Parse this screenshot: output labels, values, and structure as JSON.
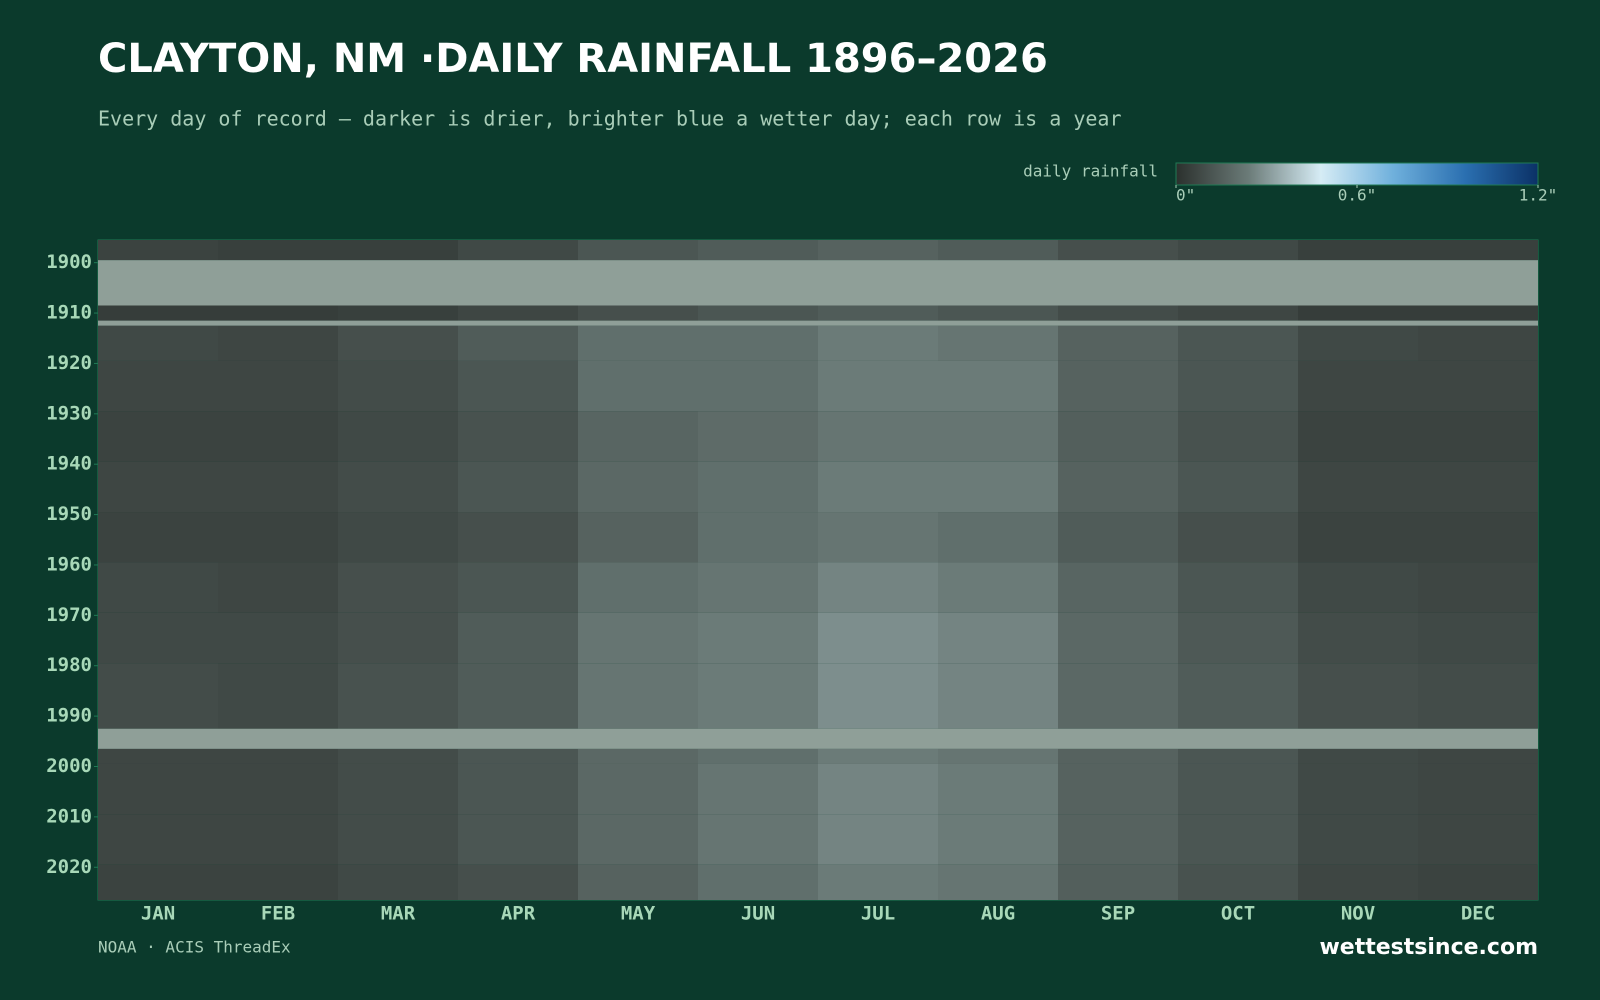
{
  "chart_data": {
    "type": "heatmap",
    "title": "CLAYTON, NM ·DAILY RAINFALL 1896–2026",
    "subtitle": "Every day of record — darker is drier, brighter blue a wetter day; each row is a year",
    "legend_title": "daily rainfall",
    "source": "NOAA · ACIS ThreadEx",
    "brand": "wettestsince.com",
    "categories": [
      "JAN",
      "FEB",
      "MAR",
      "APR",
      "MAY",
      "JUN",
      "JUL",
      "AUG",
      "SEP",
      "OCT",
      "NOV",
      "DEC"
    ],
    "ylim": [
      1896,
      2026
    ],
    "yticks": [
      1900,
      1910,
      1920,
      1930,
      1940,
      1950,
      1960,
      1970,
      1980,
      1990,
      2000,
      2010,
      2020
    ],
    "colorscale": {
      "range": [
        0,
        1.2
      ],
      "ticks": [
        {
          "value": 0,
          "label": "0\""
        },
        {
          "value": 0.6,
          "label": "0.6\""
        },
        {
          "value": 1.2,
          "label": "1.2\""
        }
      ],
      "colors": [
        "#2b302d",
        "#6b7b78",
        "#d6ecf5",
        "#6fb0dc",
        "#2a6fb0",
        "#0b3166"
      ]
    },
    "background": "#0b3a2c",
    "missing_color": "#8f9f98",
    "missing": [
      [
        1900,
        1908
      ],
      [
        1912,
        1912
      ],
      [
        1993,
        1996
      ]
    ],
    "rows": [
      {
        "years": [
          1896,
          1899
        ],
        "values": [
          0.06,
          0.05,
          0.05,
          0.08,
          0.12,
          0.14,
          0.16,
          0.14,
          0.1,
          0.08,
          0.05,
          0.05
        ]
      },
      {
        "years": [
          1909,
          1911
        ],
        "values": [
          0.04,
          0.04,
          0.05,
          0.07,
          0.1,
          0.12,
          0.14,
          0.12,
          0.09,
          0.07,
          0.04,
          0.04
        ]
      },
      {
        "years": [
          1913,
          1919
        ],
        "values": [
          0.08,
          0.07,
          0.1,
          0.14,
          0.2,
          0.2,
          0.24,
          0.22,
          0.16,
          0.12,
          0.08,
          0.07
        ]
      },
      {
        "years": [
          1920,
          1929
        ],
        "values": [
          0.07,
          0.07,
          0.09,
          0.12,
          0.2,
          0.2,
          0.24,
          0.24,
          0.16,
          0.12,
          0.07,
          0.07
        ]
      },
      {
        "years": [
          1930,
          1939
        ],
        "values": [
          0.06,
          0.06,
          0.08,
          0.11,
          0.17,
          0.19,
          0.22,
          0.22,
          0.15,
          0.11,
          0.06,
          0.06
        ]
      },
      {
        "years": [
          1940,
          1949
        ],
        "values": [
          0.07,
          0.07,
          0.09,
          0.12,
          0.18,
          0.2,
          0.24,
          0.24,
          0.16,
          0.12,
          0.07,
          0.07
        ]
      },
      {
        "years": [
          1950,
          1959
        ],
        "values": [
          0.06,
          0.06,
          0.08,
          0.1,
          0.16,
          0.2,
          0.22,
          0.2,
          0.14,
          0.1,
          0.06,
          0.06
        ]
      },
      {
        "years": [
          1960,
          1969
        ],
        "values": [
          0.08,
          0.07,
          0.1,
          0.12,
          0.2,
          0.22,
          0.26,
          0.24,
          0.17,
          0.12,
          0.08,
          0.07
        ]
      },
      {
        "years": [
          1970,
          1979
        ],
        "values": [
          0.08,
          0.08,
          0.1,
          0.14,
          0.22,
          0.24,
          0.28,
          0.26,
          0.18,
          0.13,
          0.09,
          0.08
        ]
      },
      {
        "years": [
          1980,
          1992
        ],
        "values": [
          0.09,
          0.08,
          0.11,
          0.14,
          0.22,
          0.24,
          0.28,
          0.26,
          0.18,
          0.14,
          0.1,
          0.09
        ]
      },
      {
        "years": [
          1997,
          1999
        ],
        "values": [
          0.07,
          0.07,
          0.09,
          0.12,
          0.18,
          0.2,
          0.24,
          0.22,
          0.16,
          0.12,
          0.08,
          0.07
        ]
      },
      {
        "years": [
          2000,
          2009
        ],
        "values": [
          0.07,
          0.07,
          0.09,
          0.12,
          0.18,
          0.22,
          0.26,
          0.24,
          0.16,
          0.12,
          0.08,
          0.07
        ]
      },
      {
        "years": [
          2010,
          2019
        ],
        "values": [
          0.07,
          0.07,
          0.09,
          0.12,
          0.18,
          0.22,
          0.26,
          0.24,
          0.16,
          0.12,
          0.08,
          0.07
        ]
      },
      {
        "years": [
          2020,
          2026
        ],
        "values": [
          0.06,
          0.06,
          0.08,
          0.1,
          0.16,
          0.2,
          0.24,
          0.22,
          0.15,
          0.11,
          0.07,
          0.06
        ]
      }
    ]
  }
}
